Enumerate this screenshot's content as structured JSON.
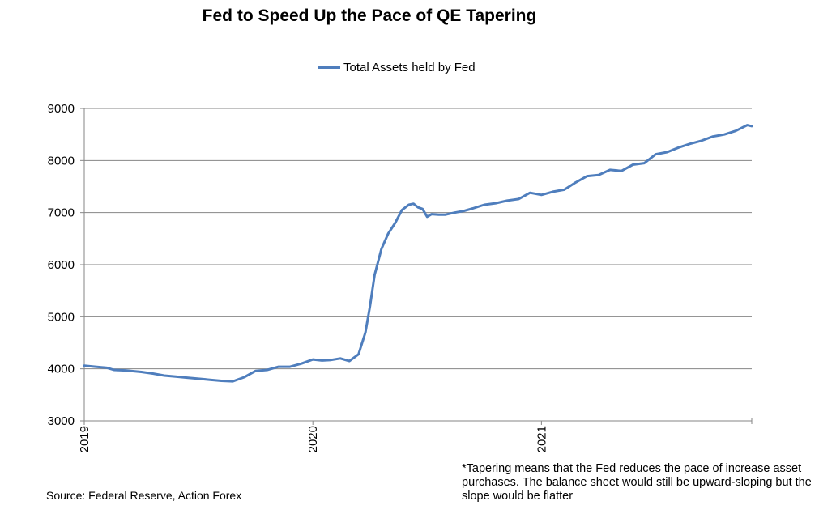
{
  "chart_data": {
    "type": "line",
    "title": "Fed to Speed Up the Pace of QE Tapering",
    "xlabel": "",
    "ylabel": "",
    "ylim": [
      3000,
      9000
    ],
    "yticks": [
      3000,
      4000,
      5000,
      6000,
      7000,
      8000,
      9000
    ],
    "xticks": [
      "2019",
      "2020",
      "2021"
    ],
    "xlim": [
      2019.0,
      2021.92
    ],
    "grid": "horizontal",
    "legend_position": "top-center",
    "color": "#4F7EBD",
    "series": [
      {
        "name": "Total Assets held by Fed",
        "x": [
          2019.0,
          2019.05,
          2019.1,
          2019.13,
          2019.18,
          2019.25,
          2019.3,
          2019.35,
          2019.4,
          2019.45,
          2019.5,
          2019.55,
          2019.6,
          2019.65,
          2019.7,
          2019.75,
          2019.8,
          2019.85,
          2019.9,
          2019.95,
          2020.0,
          2020.04,
          2020.08,
          2020.12,
          2020.16,
          2020.2,
          2020.23,
          2020.25,
          2020.27,
          2020.3,
          2020.33,
          2020.36,
          2020.39,
          2020.42,
          2020.44,
          2020.46,
          2020.48,
          2020.5,
          2020.52,
          2020.55,
          2020.58,
          2020.62,
          2020.66,
          2020.7,
          2020.75,
          2020.8,
          2020.85,
          2020.9,
          2020.95,
          2021.0,
          2021.05,
          2021.1,
          2021.15,
          2021.2,
          2021.25,
          2021.3,
          2021.35,
          2021.4,
          2021.45,
          2021.5,
          2021.55,
          2021.6,
          2021.65,
          2021.7,
          2021.75,
          2021.8,
          2021.85,
          2021.9,
          2021.92
        ],
        "values": [
          4060,
          4040,
          4020,
          3980,
          3970,
          3940,
          3910,
          3870,
          3850,
          3830,
          3810,
          3790,
          3770,
          3760,
          3840,
          3960,
          3980,
          4040,
          4040,
          4100,
          4180,
          4160,
          4170,
          4200,
          4150,
          4280,
          4700,
          5200,
          5800,
          6300,
          6600,
          6800,
          7050,
          7150,
          7170,
          7100,
          7070,
          6920,
          6970,
          6960,
          6960,
          7000,
          7030,
          7080,
          7150,
          7180,
          7230,
          7260,
          7380,
          7340,
          7400,
          7440,
          7580,
          7700,
          7720,
          7820,
          7800,
          7920,
          7950,
          8120,
          8160,
          8250,
          8320,
          8380,
          8460,
          8500,
          8570,
          8680,
          8660
        ]
      }
    ]
  },
  "source": "Source: Federal Reserve, Action Forex",
  "note": "*Tapering means  that the Fed reduces the pace of increase asset purchases. The balance sheet would still be upward-sloping but the slope would be flatter"
}
